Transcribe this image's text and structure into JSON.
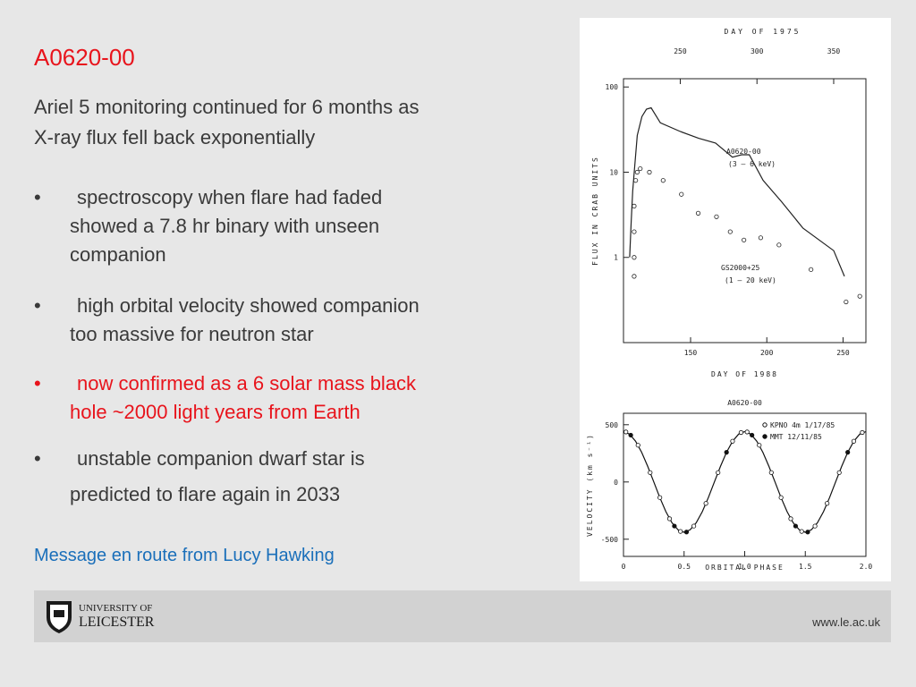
{
  "slide": {
    "title": "A0620-00",
    "intro": [
      "Ariel 5 monitoring continued for 6 months as",
      "X-ray flux fell back exponentially"
    ],
    "bullets": [
      {
        "lines": [
          "spectroscopy when flare had faded",
          "showed a 7.8 hr binary with unseen",
          "companion"
        ],
        "color": "#3a3a3a"
      },
      {
        "lines": [
          "high orbital velocity showed companion",
          "too massive for neutron star"
        ],
        "color": "#3a3a3a"
      },
      {
        "lines": [
          "now confirmed as a 6 solar mass black",
          "hole ~2000 light years from Earth"
        ],
        "color": "#e8141c"
      },
      {
        "lines": [
          "unstable companion dwarf star is",
          "predicted to flare again in 2033"
        ],
        "color": "#3a3a3a"
      }
    ],
    "message": "Message en route from Lucy Hawking",
    "logo": [
      "UNIVERSITY OF",
      "LEICESTER"
    ],
    "url": "www.le.ac.uk"
  },
  "chart_data": [
    {
      "type": "line",
      "xlabel": "DAY OF 1988",
      "x2label": "DAY OF 1975",
      "ylabel": "FLUX IN CRAB UNITS",
      "xlim": [
        106,
        265
      ],
      "xticks": [
        150,
        200,
        250
      ],
      "x2lim": [
        213,
        371
      ],
      "x2ticks": [
        250,
        300,
        350
      ],
      "ylim": [
        0.1,
        125
      ],
      "yticks": [
        1,
        10,
        100
      ],
      "log_y": true,
      "annotations": [
        "A0620-00",
        "(3 — 6 keV)",
        "GS2000+25",
        "(1 — 20 keV)"
      ],
      "series": [
        {
          "style": "line",
          "axis": "x2",
          "color": "#222222",
          "x": [
            217,
            218,
            219,
            220,
            222,
            225,
            228,
            231,
            237,
            250,
            262,
            273,
            284,
            290,
            295,
            304,
            316,
            330,
            350,
            357
          ],
          "values": [
            1,
            2.6,
            6,
            10,
            27,
            45,
            55,
            57,
            38,
            30,
            25,
            22,
            15,
            16,
            16,
            8,
            4.5,
            2.2,
            1.2,
            0.6
          ]
        },
        {
          "style": "open",
          "color": "#222222",
          "x": [
            113,
            113,
            113,
            113,
            114,
            115,
            117,
            123,
            132,
            144,
            155,
            167,
            176,
            185,
            196,
            208,
            229,
            252,
            261
          ],
          "values": [
            0.6,
            1,
            2,
            4,
            8,
            10,
            11,
            10,
            8,
            5.5,
            3.3,
            3,
            2,
            1.6,
            1.7,
            1.4,
            0.72,
            0.3,
            0.35
          ]
        }
      ]
    },
    {
      "type": "line",
      "title": "A0620-00",
      "xlabel": "ORBITAL PHASE",
      "ylabel": "VELOCITY (km s⁻¹)",
      "xlim": [
        0,
        2
      ],
      "xticks": [
        0,
        0.5,
        {
          "value": 1,
          "label": "1.0"
        },
        1.5,
        {
          "value": 2,
          "label": "2.0"
        }
      ],
      "ylim": [
        -650,
        600
      ],
      "yticks": [
        500,
        0,
        -500
      ],
      "series": [
        {
          "style": "line",
          "color": "#111111",
          "x": [
            0,
            0.05,
            0.1,
            0.15,
            0.2,
            0.25,
            0.3,
            0.35,
            0.4,
            0.45,
            0.5,
            0.55,
            0.6,
            0.65,
            0.7,
            0.75,
            0.8,
            0.85,
            0.9,
            0.95,
            1,
            1.05,
            1.1,
            1.15,
            1.2,
            1.25,
            1.3,
            1.35,
            1.4,
            1.45,
            1.5,
            1.55,
            1.6,
            1.65,
            1.7,
            1.75,
            1.8,
            1.85,
            1.9,
            1.95,
            2
          ],
          "values": [
            440,
            418,
            356,
            259,
            136,
            0,
            -136,
            -259,
            -356,
            -418,
            -440,
            -418,
            -356,
            -259,
            -136,
            0,
            136,
            259,
            356,
            418,
            440,
            418,
            356,
            259,
            136,
            0,
            -136,
            -259,
            -356,
            -418,
            -440,
            -418,
            -356,
            -259,
            -136,
            0,
            136,
            259,
            356,
            418,
            440
          ]
        },
        {
          "name": "KPNO 4m 1/17/85",
          "style": "open",
          "color": "#111111",
          "x": [
            0.02,
            0.12,
            0.22,
            0.3,
            0.38,
            0.47,
            0.58,
            0.68,
            0.78,
            0.9,
            0.97,
            1.02,
            1.12,
            1.22,
            1.3,
            1.38,
            1.47,
            1.58,
            1.68,
            1.78,
            1.9,
            1.97
          ],
          "values": [
            437,
            321,
            82,
            -136,
            -321,
            -432,
            -385,
            -187,
            82,
            356,
            432,
            437,
            321,
            82,
            -136,
            -321,
            -432,
            -385,
            -187,
            82,
            356,
            432
          ]
        },
        {
          "name": "MMT 12/11/85",
          "style": "filled",
          "color": "#111111",
          "x": [
            0.06,
            0.42,
            0.52,
            0.85,
            1.06,
            1.42,
            1.52,
            1.85
          ],
          "values": [
            409,
            -385,
            -437,
            259,
            409,
            -385,
            -437,
            259
          ]
        }
      ]
    }
  ]
}
